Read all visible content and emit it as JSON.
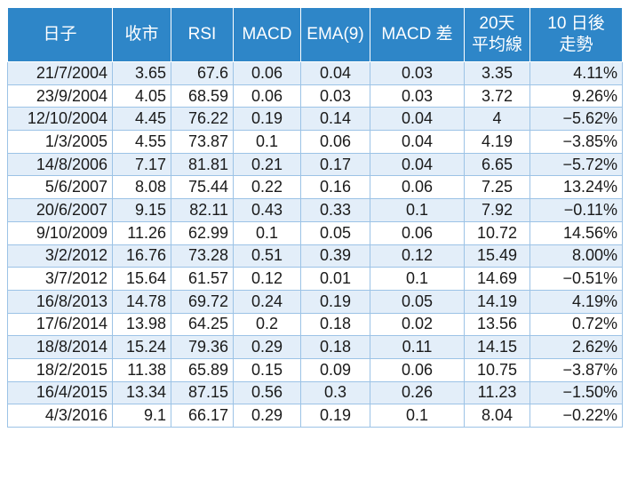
{
  "headers": [
    "日子",
    "收市",
    "RSI",
    "MACD",
    "EMA(9)",
    "MACD 差",
    [
      "20天",
      "平均線"
    ],
    [
      "10 日後",
      "走勢"
    ]
  ],
  "rows": [
    [
      "21/7/2004",
      "3.65",
      "67.6",
      "0.06",
      "0.04",
      "0.03",
      "3.35",
      "4.11%"
    ],
    [
      "23/9/2004",
      "4.05",
      "68.59",
      "0.06",
      "0.03",
      "0.03",
      "3.72",
      "9.26%"
    ],
    [
      "12/10/2004",
      "4.45",
      "76.22",
      "0.19",
      "0.14",
      "0.04",
      "4",
      "−5.62%"
    ],
    [
      "1/3/2005",
      "4.55",
      "73.87",
      "0.1",
      "0.06",
      "0.04",
      "4.19",
      "−3.85%"
    ],
    [
      "14/8/2006",
      "7.17",
      "81.81",
      "0.21",
      "0.17",
      "0.04",
      "6.65",
      "−5.72%"
    ],
    [
      "5/6/2007",
      "8.08",
      "75.44",
      "0.22",
      "0.16",
      "0.06",
      "7.25",
      "13.24%"
    ],
    [
      "20/6/2007",
      "9.15",
      "82.11",
      "0.43",
      "0.33",
      "0.1",
      "7.92",
      "−0.11%"
    ],
    [
      "9/10/2009",
      "11.26",
      "62.99",
      "0.1",
      "0.05",
      "0.06",
      "10.72",
      "14.56%"
    ],
    [
      "3/2/2012",
      "16.76",
      "73.28",
      "0.51",
      "0.39",
      "0.12",
      "15.49",
      "8.00%"
    ],
    [
      "3/7/2012",
      "15.64",
      "61.57",
      "0.12",
      "0.01",
      "0.1",
      "14.69",
      "−0.51%"
    ],
    [
      "16/8/2013",
      "14.78",
      "69.72",
      "0.24",
      "0.19",
      "0.05",
      "14.19",
      "4.19%"
    ],
    [
      "17/6/2014",
      "13.98",
      "64.25",
      "0.2",
      "0.18",
      "0.02",
      "13.56",
      "0.72%"
    ],
    [
      "18/8/2014",
      "15.24",
      "79.36",
      "0.29",
      "0.18",
      "0.11",
      "14.15",
      "2.62%"
    ],
    [
      "18/2/2015",
      "11.38",
      "65.89",
      "0.15",
      "0.09",
      "0.06",
      "10.75",
      "−3.87%"
    ],
    [
      "16/4/2015",
      "13.34",
      "87.15",
      "0.56",
      "0.3",
      "0.26",
      "11.23",
      "−1.50%"
    ],
    [
      "4/3/2016",
      "9.1",
      "66.17",
      "0.29",
      "0.19",
      "0.1",
      "8.04",
      "−0.22%"
    ]
  ],
  "colors": {
    "header_bg": "#2e86c8",
    "stripe": "#e3eef9",
    "border": "#9cc3e6"
  }
}
